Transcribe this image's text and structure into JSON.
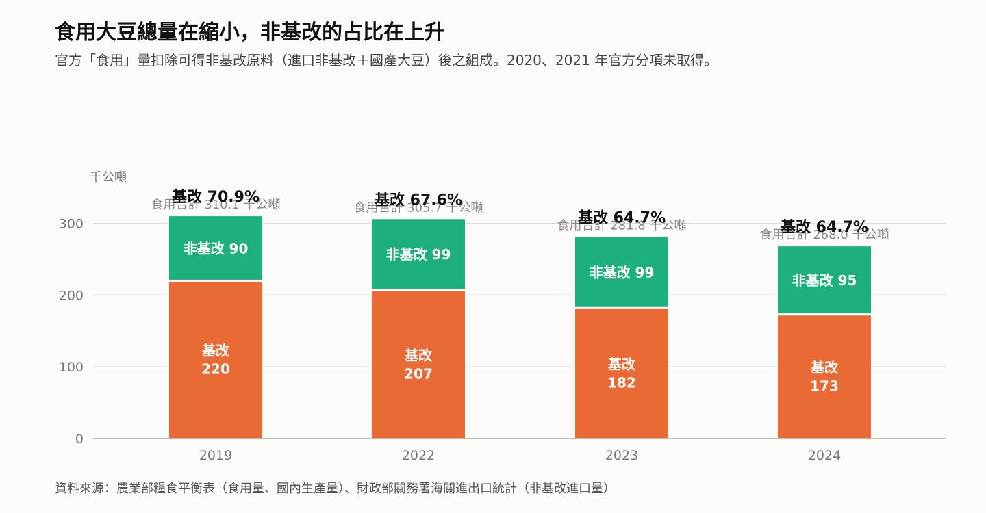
{
  "header": {
    "title": "食用大豆總量在縮小，非基改的占比在上升",
    "subtitle": "官方「食用」量扣除可得非基改原料（進口非基改＋國產大豆）後之組成。2020、2021 年官方分項未取得。"
  },
  "footer": {
    "source": "資料來源：農業部糧食平衡表（食用量、國內生產量）、財政部關務署海關進出口統計（非基改進口量）"
  },
  "colors": {
    "gmo": "#e96a35",
    "non_gmo": "#1db07c",
    "grid": "#dddddd",
    "axis": "#bbbbbb"
  },
  "chart_data": {
    "type": "bar",
    "stacked": true,
    "categories": [
      "2019",
      "2022",
      "2023",
      "2024"
    ],
    "series": [
      {
        "name": "基改",
        "values": [
          220,
          207,
          182,
          173
        ],
        "color": "#e96a35"
      },
      {
        "name": "非基改",
        "values": [
          90,
          99,
          99,
          95
        ],
        "color": "#1db07c"
      }
    ],
    "totals": [
      310.1,
      305.7,
      281.8,
      268.0
    ],
    "total_labels": [
      "食用合計 310.1 千公噸",
      "食用合計 305.7 千公噸",
      "食用合計 281.8 千公噸",
      "食用合計 268.0 千公噸"
    ],
    "gmo_share_labels": [
      "基改 70.9%",
      "基改 67.6%",
      "基改 64.7%",
      "基改 64.7%"
    ],
    "gmo_share_pct": [
      70.9,
      67.6,
      64.7,
      64.7
    ],
    "gmo_segment_labels": [
      [
        "基改",
        "220"
      ],
      [
        "基改",
        "207"
      ],
      [
        "基改",
        "182"
      ],
      [
        "基改",
        "173"
      ]
    ],
    "non_gmo_segment_labels": [
      "非基改 90",
      "非基改 99",
      "非基改 99",
      "非基改 95"
    ],
    "ylabel": "千公噸",
    "yticks": [
      0,
      100,
      200,
      300
    ],
    "ylim": [
      0,
      300
    ],
    "grid": true,
    "legend": "none"
  }
}
